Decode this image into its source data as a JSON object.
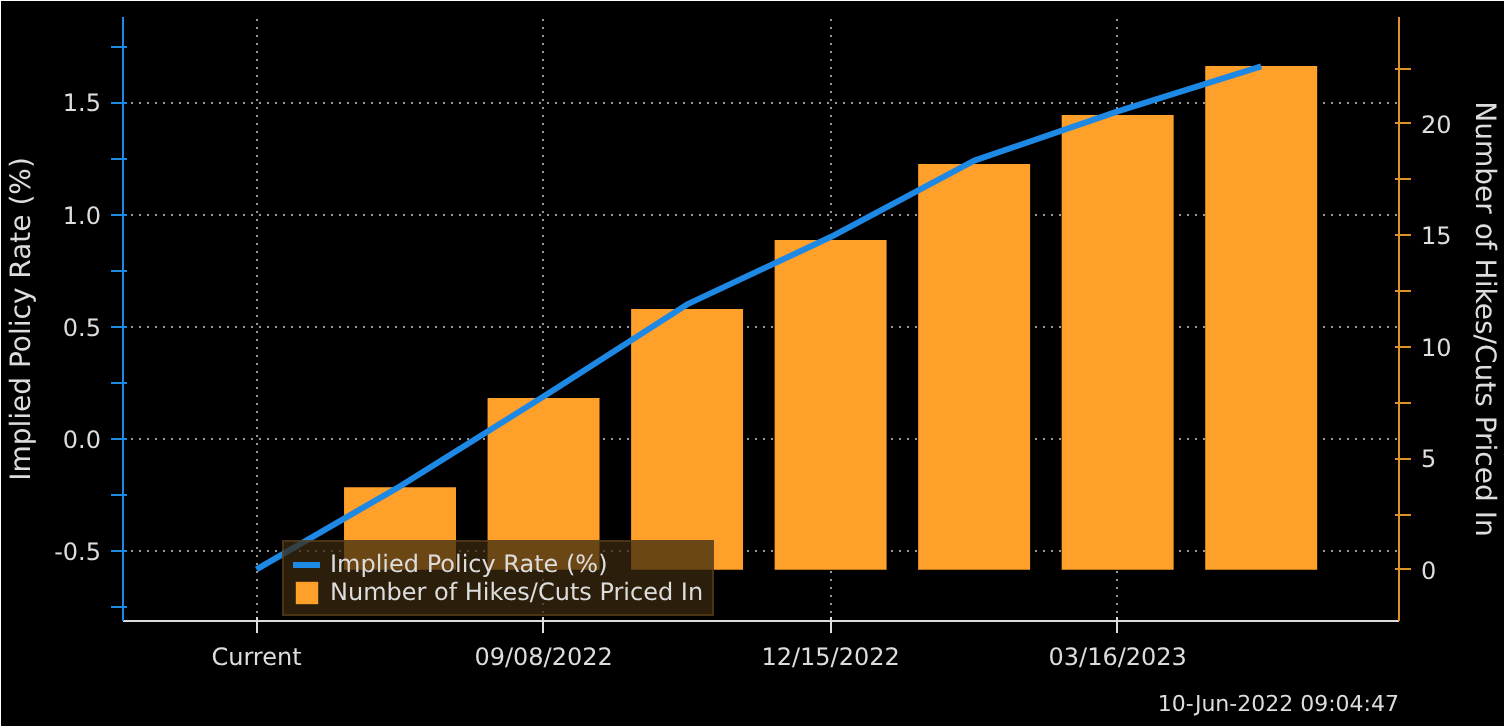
{
  "chart_data": {
    "type": "bar",
    "categories": [
      "Current",
      null,
      "09/08/2022",
      null,
      "12/15/2022",
      null,
      "03/16/2023",
      null
    ],
    "series": [
      {
        "name": "Implied Policy Rate (%)",
        "type": "line",
        "color": "#1e88e5",
        "values": [
          -0.58,
          -0.21,
          0.19,
          0.6,
          0.9,
          1.24,
          1.46,
          1.66
        ]
      },
      {
        "name": "Number of Hikes/Cuts Priced In",
        "axis": "y2",
        "color": "#ffa02a",
        "values": [
          null,
          3.7,
          7.7,
          11.7,
          14.8,
          18.2,
          20.4,
          22.6
        ]
      }
    ],
    "ylabel": "Implied Policy Rate (%)",
    "y2label": "Number of Hikes/Cuts Priced In",
    "ylim": [
      -0.81,
      1.88
    ],
    "yticks": [
      {
        "value": -0.75,
        "label": null
      },
      -0.5,
      {
        "value": -0.25,
        "label": null
      },
      {
        "value": 0,
        "label": "0.0"
      },
      {
        "value": 0.25,
        "label": null
      },
      0.5,
      {
        "value": 0.75,
        "label": null
      },
      {
        "value": 1,
        "label": "1.0"
      },
      {
        "value": 1.25,
        "label": null
      },
      1.5,
      {
        "value": 1.75,
        "label": null
      }
    ],
    "y2lim": [
      -2.3,
      24.8
    ],
    "y2ticks": [
      0,
      {
        "value": 2.5,
        "label": null
      },
      5,
      {
        "value": 7.5,
        "label": null
      },
      10,
      {
        "value": 12.5,
        "label": null
      },
      15,
      {
        "value": 17.5,
        "label": null
      },
      20,
      {
        "value": 22.5,
        "label": null
      }
    ],
    "grid": true,
    "legend": "bottom left",
    "annotations": [
      "10-Jun-2022 09:04:47"
    ]
  }
}
